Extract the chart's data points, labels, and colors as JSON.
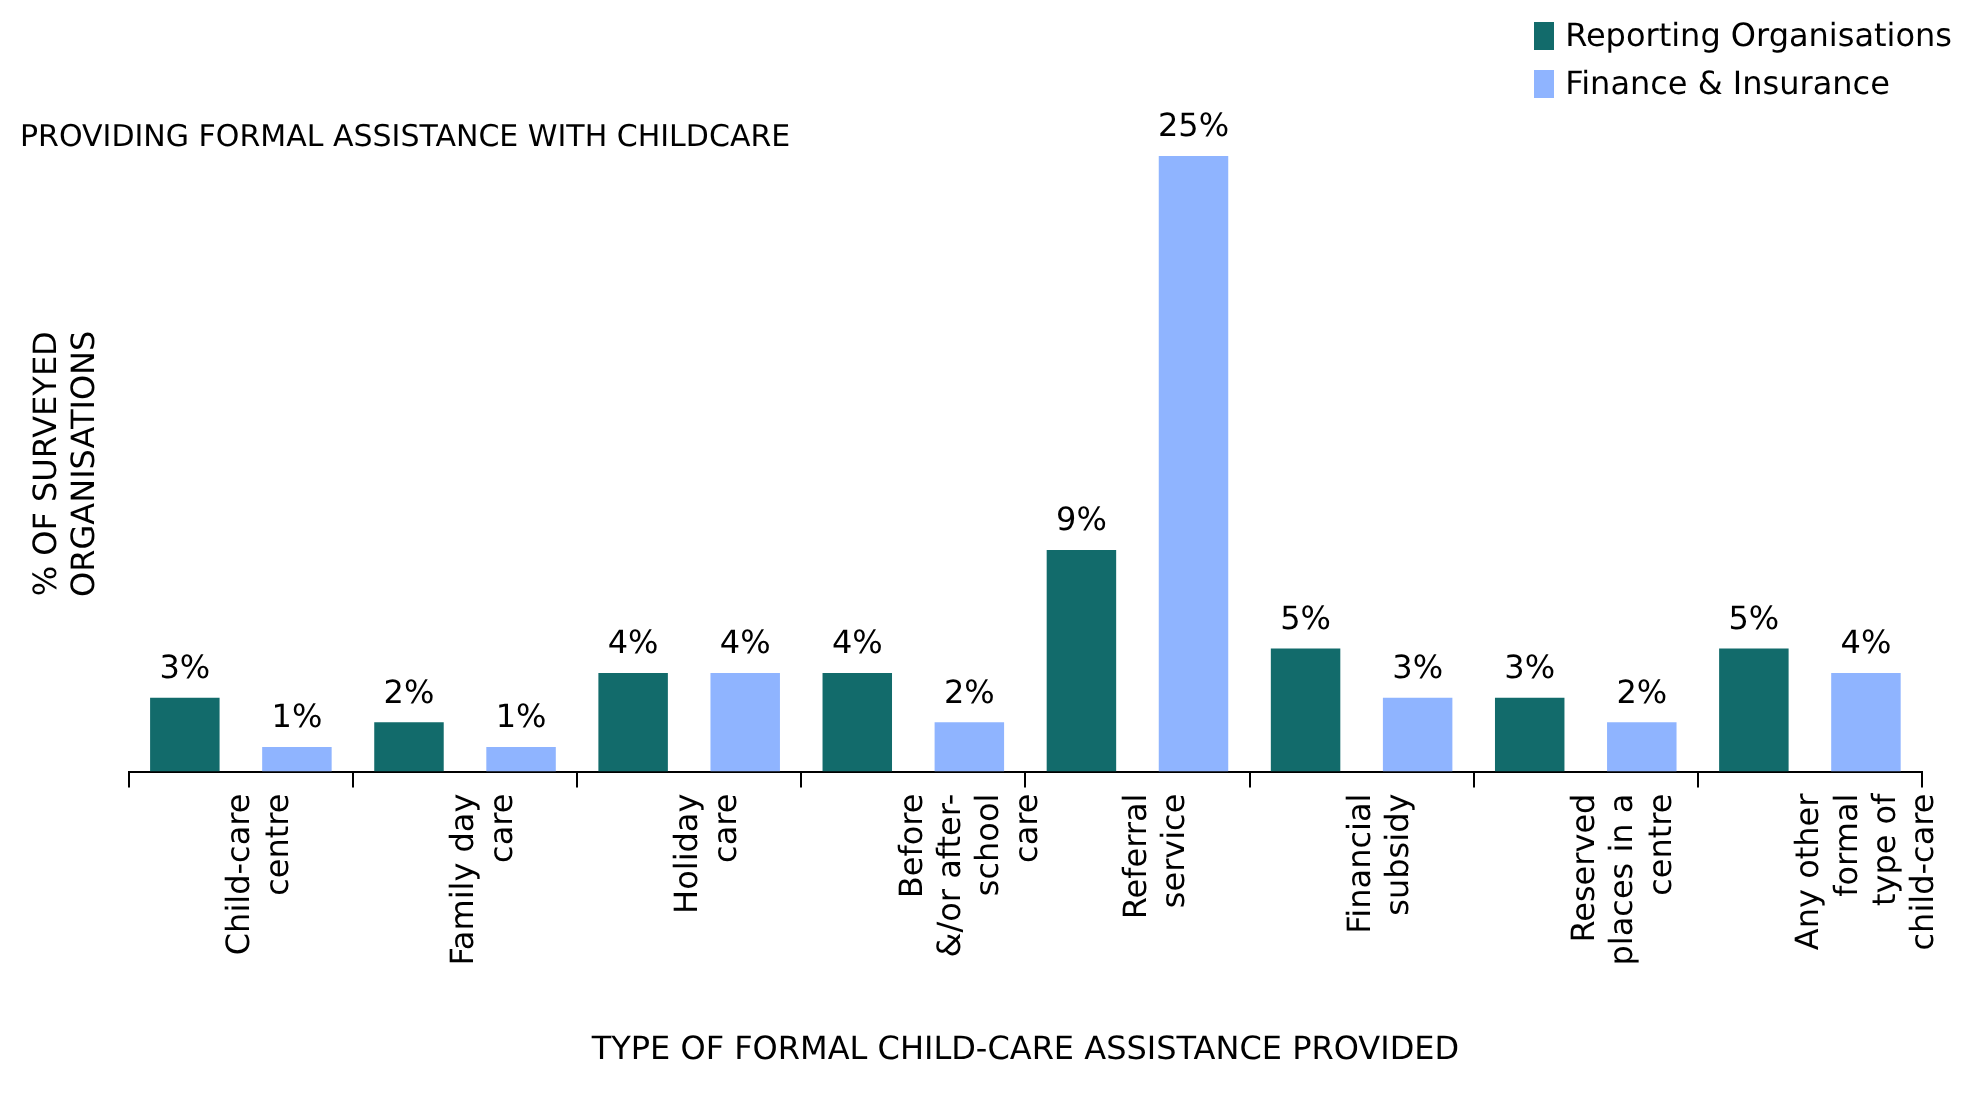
{
  "chart_data": {
    "type": "bar",
    "title": "PROVIDING FORMAL ASSISTANCE WITH CHILDCARE",
    "xlabel": "TYPE OF FORMAL CHILD-CARE ASSISTANCE PROVIDED",
    "ylabel": "% OF SURVEYED\nORGANISATIONS",
    "categories": [
      "Child-care\ncentre",
      "Family day\ncare",
      "Holiday\ncare",
      "Before\n&/or after-\nschool\ncare",
      "Referral\nservice",
      "Financial\nsubsidy",
      "Reserved\nplaces in a\ncentre",
      "Any other\nformal\ntype of\nchild-care"
    ],
    "series": [
      {
        "name": "Reporting Organisations",
        "color": "#126b6b",
        "values": [
          3,
          2,
          4,
          4,
          9,
          5,
          3,
          5
        ],
        "value_labels": [
          "3%",
          "2%",
          "4%",
          "4%",
          "9%",
          "5%",
          "3%",
          "5%"
        ]
      },
      {
        "name": "Finance & Insurance",
        "color": "#8fb4ff",
        "values": [
          1,
          1,
          4,
          2,
          25,
          3,
          2,
          4
        ],
        "value_labels": [
          "1%",
          "1%",
          "4%",
          "2%",
          "25%",
          "3%",
          "2%",
          "4%"
        ]
      }
    ],
    "legend": "top right",
    "grid": false
  }
}
